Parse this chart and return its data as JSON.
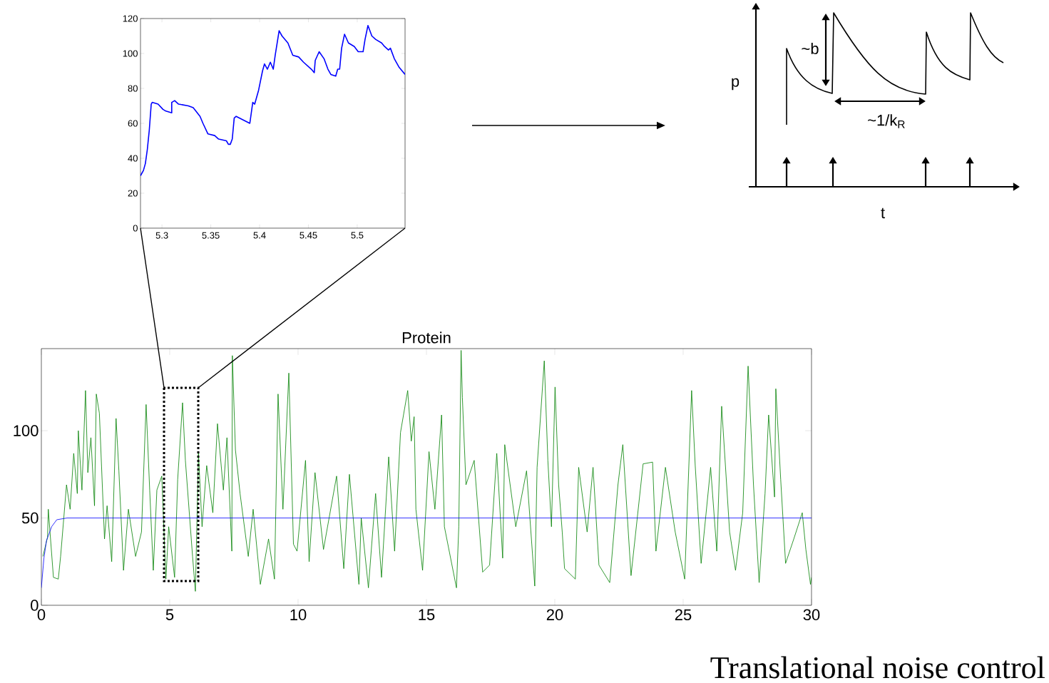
{
  "chart_data": [
    {
      "type": "line",
      "xlim": [
        5.278,
        5.549
      ],
      "ylim": [
        0,
        120
      ],
      "xticks": [
        5.3,
        5.35,
        5.4,
        5.45,
        5.5
      ],
      "yticks": [
        0,
        20,
        40,
        60,
        80,
        100,
        120
      ],
      "series": [
        {
          "color": "#0000ff",
          "x": [
            5.278,
            5.281,
            5.283,
            5.285,
            5.287,
            5.289,
            5.29,
            5.296,
            5.301,
            5.304,
            5.31,
            5.31,
            5.313,
            5.317,
            5.327,
            5.332,
            5.339,
            5.342,
            5.347,
            5.354,
            5.358,
            5.366,
            5.368,
            5.37,
            5.372,
            5.374,
            5.376,
            5.383,
            5.39,
            5.393,
            5.395,
            5.399,
            5.403,
            5.405,
            5.408,
            5.411,
            5.414,
            5.416,
            5.42,
            5.423,
            5.429,
            5.434,
            5.44,
            5.445,
            5.453,
            5.456,
            5.457,
            5.461,
            5.466,
            5.47,
            5.473,
            5.478,
            5.48,
            5.482,
            5.484,
            5.487,
            5.491,
            5.497,
            5.501,
            5.506,
            5.508,
            5.511,
            5.515,
            5.519,
            5.525,
            5.528,
            5.532,
            5.534,
            5.538,
            5.543,
            5.549
          ],
          "values": [
            30,
            33,
            37,
            45,
            56,
            71,
            72,
            71,
            68,
            67,
            66,
            72,
            73,
            71,
            70,
            69,
            64,
            60,
            54,
            53,
            51,
            50,
            48,
            48,
            51,
            63,
            64,
            62,
            60,
            72,
            71,
            79,
            90,
            94,
            91,
            95,
            91,
            99,
            113,
            110,
            106,
            99,
            98,
            95,
            91,
            89,
            96,
            101,
            97,
            91,
            88,
            87,
            91,
            91,
            103,
            111,
            106,
            104,
            101,
            101,
            108,
            116,
            110,
            108,
            106,
            104,
            102,
            103,
            97,
            92,
            88
          ]
        }
      ]
    },
    {
      "type": "other",
      "xlabel": "t",
      "ylabel": "p",
      "annotations": [
        "~b",
        "~1/k$_{R}$"
      ]
    },
    {
      "type": "line",
      "title": "Protein",
      "xlim": [
        0,
        30
      ],
      "ylim": [
        0,
        147
      ],
      "xticks": [
        0,
        5,
        10,
        15,
        20,
        25,
        30
      ],
      "yticks": [
        0,
        50,
        100
      ],
      "annotations": [
        "Translational noise control"
      ],
      "series": [
        {
          "color": "#008000",
          "x": [
            0.06,
            0.24,
            0.27,
            0.47,
            0.66,
            0.75,
            0.98,
            1.12,
            1.26,
            1.4,
            1.44,
            1.58,
            1.72,
            1.81,
            1.93,
            2.07,
            2.14,
            2.26,
            2.46,
            2.56,
            2.74,
            2.91,
            3.02,
            3.2,
            3.39,
            3.67,
            3.9,
            4.08,
            4.22,
            4.36,
            4.5,
            4.69,
            4.85,
            4.96,
            5.19,
            5.31,
            5.5,
            5.61,
            5.89,
            6.0,
            6.12,
            6.26,
            6.44,
            6.68,
            6.86,
            7.09,
            7.23,
            7.42,
            7.44,
            7.56,
            7.74,
            8.06,
            8.25,
            8.53,
            8.85,
            9.08,
            9.22,
            9.41,
            9.64,
            9.82,
            9.96,
            10.29,
            10.43,
            10.66,
            10.99,
            11.5,
            11.78,
            12.0,
            12.37,
            12.46,
            12.74,
            13.02,
            13.25,
            13.53,
            13.76,
            13.99,
            14.27,
            14.41,
            14.52,
            14.59,
            14.85,
            15.1,
            15.33,
            15.59,
            15.7,
            16.17,
            16.26,
            16.35,
            16.4,
            16.54,
            16.86,
            17.19,
            17.46,
            17.74,
            17.97,
            18.05,
            18.48,
            18.9,
            19.22,
            19.31,
            19.59,
            19.73,
            19.87,
            20.01,
            20.15,
            20.29,
            20.38,
            20.8,
            20.93,
            21.26,
            21.49,
            21.72,
            22.14,
            22.46,
            22.65,
            22.97,
            23.44,
            23.81,
            23.94,
            24.31,
            24.69,
            25.06,
            25.33,
            25.47,
            25.7,
            26.07,
            26.31,
            26.5,
            26.81,
            27.04,
            27.32,
            27.53,
            27.74,
            27.96,
            28.19,
            28.33,
            28.56,
            28.61,
            28.8,
            28.99,
            29.31,
            29.64,
            29.78,
            29.96,
            30
          ],
          "values": [
            28,
            39,
            55,
            16,
            15,
            28,
            69,
            55,
            87,
            64,
            100,
            66,
            123,
            76,
            96,
            57,
            121,
            110,
            38,
            57,
            25,
            107,
            77,
            20,
            55,
            28,
            42,
            115,
            66,
            20,
            66,
            74,
            15,
            45,
            16,
            72,
            116,
            83,
            28,
            8,
            87,
            45,
            80,
            53,
            104,
            66,
            96,
            31,
            143,
            89,
            64,
            28,
            55,
            12,
            38,
            15,
            121,
            55,
            133,
            35,
            31,
            83,
            25,
            76,
            32,
            74,
            21,
            75,
            12,
            50,
            10,
            64,
            16,
            85,
            31,
            99,
            123,
            94,
            108,
            55,
            20,
            88,
            55,
            109,
            45,
            10,
            45,
            146,
            119,
            69,
            83,
            19,
            23,
            87,
            27,
            92,
            45,
            77,
            11,
            79,
            140,
            83,
            45,
            125,
            69,
            42,
            21,
            15,
            79,
            42,
            79,
            23,
            13,
            69,
            92,
            17,
            81,
            82,
            31,
            79,
            42,
            15,
            123,
            80,
            24,
            79,
            31,
            114,
            42,
            20,
            53,
            137,
            69,
            13,
            64,
            109,
            62,
            124,
            72,
            24,
            38,
            53,
            32,
            12,
            16
          ]
        },
        {
          "color": "#0000ff",
          "x": [
            0,
            0.1,
            0.2,
            0.4,
            0.6,
            1,
            30
          ],
          "values": [
            10,
            27,
            37,
            45,
            49,
            50,
            50
          ]
        }
      ]
    }
  ]
}
